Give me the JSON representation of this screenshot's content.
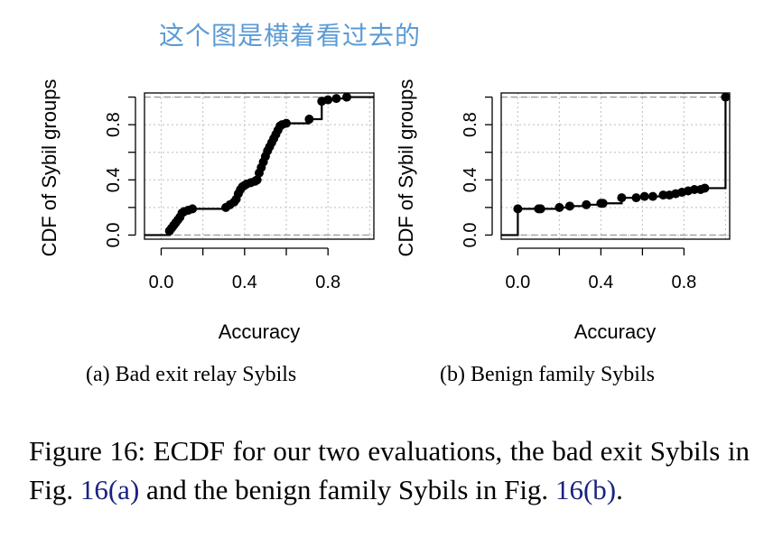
{
  "annotation": "这个图是横着看过去的",
  "chart_data": [
    {
      "type": "line",
      "subcaption": "(a)  Bad exit relay Sybils",
      "xlabel": "Accuracy",
      "ylabel": "CDF of Sybil groups",
      "xlim": [
        -0.08,
        1.02
      ],
      "ylim": [
        -0.03,
        1.03
      ],
      "xticks": [
        "0.0",
        "0.4",
        "0.8"
      ],
      "yticks": [
        "0.0",
        "0.4",
        "0.8"
      ],
      "grid": true,
      "reference_lines": [
        0,
        1
      ],
      "step_points": [
        [
          0.04,
          0.03
        ],
        [
          0.05,
          0.05
        ],
        [
          0.06,
          0.07
        ],
        [
          0.07,
          0.09
        ],
        [
          0.08,
          0.11
        ],
        [
          0.09,
          0.13
        ],
        [
          0.1,
          0.16
        ],
        [
          0.11,
          0.17
        ],
        [
          0.13,
          0.18
        ],
        [
          0.15,
          0.19
        ],
        [
          0.31,
          0.2
        ],
        [
          0.33,
          0.22
        ],
        [
          0.35,
          0.24
        ],
        [
          0.36,
          0.26
        ],
        [
          0.37,
          0.3
        ],
        [
          0.38,
          0.33
        ],
        [
          0.39,
          0.35
        ],
        [
          0.4,
          0.36
        ],
        [
          0.41,
          0.37
        ],
        [
          0.43,
          0.38
        ],
        [
          0.45,
          0.39
        ],
        [
          0.46,
          0.4
        ],
        [
          0.47,
          0.45
        ],
        [
          0.48,
          0.49
        ],
        [
          0.49,
          0.53
        ],
        [
          0.5,
          0.57
        ],
        [
          0.51,
          0.61
        ],
        [
          0.52,
          0.64
        ],
        [
          0.53,
          0.67
        ],
        [
          0.54,
          0.7
        ],
        [
          0.55,
          0.73
        ],
        [
          0.56,
          0.76
        ],
        [
          0.57,
          0.79
        ],
        [
          0.58,
          0.8
        ],
        [
          0.6,
          0.81
        ],
        [
          0.71,
          0.84
        ],
        [
          0.77,
          0.97
        ],
        [
          0.8,
          0.98
        ],
        [
          0.84,
          0.99
        ],
        [
          0.89,
          1.0
        ]
      ]
    },
    {
      "type": "line",
      "subcaption": "(b)  Benign family Sybils",
      "xlabel": "Accuracy",
      "ylabel": "CDF of Sybil groups",
      "xlim": [
        -0.08,
        1.02
      ],
      "ylim": [
        -0.03,
        1.03
      ],
      "xticks": [
        "0.0",
        "0.4",
        "0.8"
      ],
      "yticks": [
        "0.0",
        "0.4",
        "0.8"
      ],
      "grid": true,
      "reference_lines": [
        0,
        1
      ],
      "step_points": [
        [
          0.0,
          0.19
        ],
        [
          0.1,
          0.19
        ],
        [
          0.11,
          0.19
        ],
        [
          0.2,
          0.2
        ],
        [
          0.25,
          0.21
        ],
        [
          0.33,
          0.22
        ],
        [
          0.4,
          0.23
        ],
        [
          0.41,
          0.23
        ],
        [
          0.5,
          0.27
        ],
        [
          0.57,
          0.27
        ],
        [
          0.61,
          0.28
        ],
        [
          0.65,
          0.28
        ],
        [
          0.7,
          0.29
        ],
        [
          0.73,
          0.29
        ],
        [
          0.76,
          0.3
        ],
        [
          0.79,
          0.31
        ],
        [
          0.82,
          0.32
        ],
        [
          0.85,
          0.33
        ],
        [
          0.88,
          0.33
        ],
        [
          0.9,
          0.34
        ],
        [
          1.0,
          1.0
        ]
      ]
    }
  ],
  "caption": {
    "text_before": "Figure 16: ECDF for our two evaluations, the bad exit Sybils in Fig. ",
    "ref_a": "16(a)",
    "text_middle": " and the benign family Sybils in Fig. ",
    "ref_b": "16(b)",
    "text_after": "."
  }
}
